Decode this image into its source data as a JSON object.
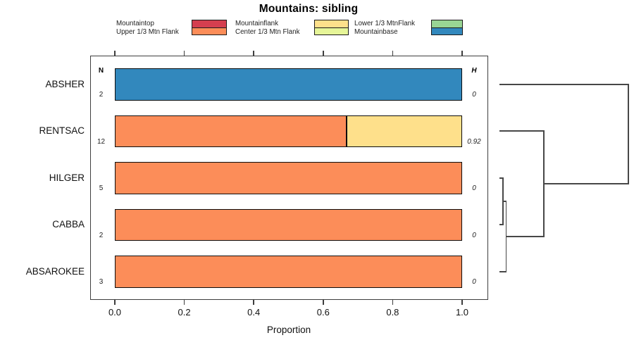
{
  "title": "Mountains: sibling",
  "axis": {
    "xlabel": "Proportion",
    "xticks": [
      0,
      0.2,
      0.4,
      0.6,
      0.8,
      1
    ],
    "xlim": [
      0,
      1
    ]
  },
  "columns": {
    "n_header": "N",
    "h_header": "H"
  },
  "colors": {
    "Mountaintop": "#D53E4F",
    "Upper 1/3 Mtn Flank": "#FC8D59",
    "Mountainflank": "#FEE08B",
    "Center 1/3 Mtn Flank": "#E6F598",
    "Lower 1/3 MtnFlank": "#99D594",
    "Mountainbase": "#3288BD"
  },
  "legend": {
    "columns": [
      [
        "Mountaintop",
        "Upper 1/3 Mtn Flank"
      ],
      [
        "Mountainflank",
        "Center 1/3 Mtn Flank"
      ],
      [
        "Lower 1/3 MtnFlank",
        "Mountainbase"
      ]
    ]
  },
  "chart_data": {
    "type": "bar",
    "orientation": "horizontal",
    "stacked": true,
    "title": "Mountains: sibling",
    "xlabel": "Proportion",
    "xlim": [
      0,
      1
    ],
    "xticks": [
      0,
      0.2,
      0.4,
      0.6,
      0.8,
      1
    ],
    "grid": false,
    "legend_entries": [
      "Mountaintop",
      "Upper 1/3 Mtn Flank",
      "Mountainflank",
      "Center 1/3 Mtn Flank",
      "Lower 1/3 MtnFlank",
      "Mountainbase"
    ],
    "categories": [
      "ABSHER",
      "RENTSAC",
      "HILGER",
      "CABBA",
      "ABSAROKEE"
    ],
    "rows": [
      {
        "label": "ABSHER",
        "n": 2,
        "h": "0",
        "segments": [
          {
            "category": "Mountainbase",
            "value": 1
          }
        ]
      },
      {
        "label": "RENTSAC",
        "n": 12,
        "h": "0.92",
        "segments": [
          {
            "category": "Upper 1/3 Mtn Flank",
            "value": 0.667
          },
          {
            "category": "Mountainflank",
            "value": 0.333
          }
        ]
      },
      {
        "label": "HILGER",
        "n": 5,
        "h": "0",
        "segments": [
          {
            "category": "Upper 1/3 Mtn Flank",
            "value": 1
          }
        ]
      },
      {
        "label": "CABBA",
        "n": 2,
        "h": "0",
        "segments": [
          {
            "category": "Upper 1/3 Mtn Flank",
            "value": 1
          }
        ]
      },
      {
        "label": "ABSAROKEE",
        "n": 3,
        "h": "0",
        "segments": [
          {
            "category": "Upper 1/3 Mtn Flank",
            "value": 1
          }
        ]
      }
    ]
  },
  "dendrogram": {
    "orientation": "right",
    "leaves": [
      "ABSHER",
      "RENTSAC",
      "HILGER",
      "CABBA",
      "ABSAROKEE"
    ],
    "merges": [
      {
        "name": "node-hilger-cabba",
        "children": [
          "HILGER",
          "CABBA"
        ],
        "height": 0.022
      },
      {
        "name": "node-plus-absarokee",
        "children": [
          "node-hilger-cabba",
          "ABSAROKEE"
        ],
        "height": 0.047
      },
      {
        "name": "node-plus-rentsac",
        "children": [
          "RENTSAC",
          "node-plus-absarokee"
        ],
        "height": 0.34
      },
      {
        "name": "root",
        "children": [
          "ABSHER",
          "node-plus-rentsac"
        ],
        "height": 1
      }
    ]
  }
}
